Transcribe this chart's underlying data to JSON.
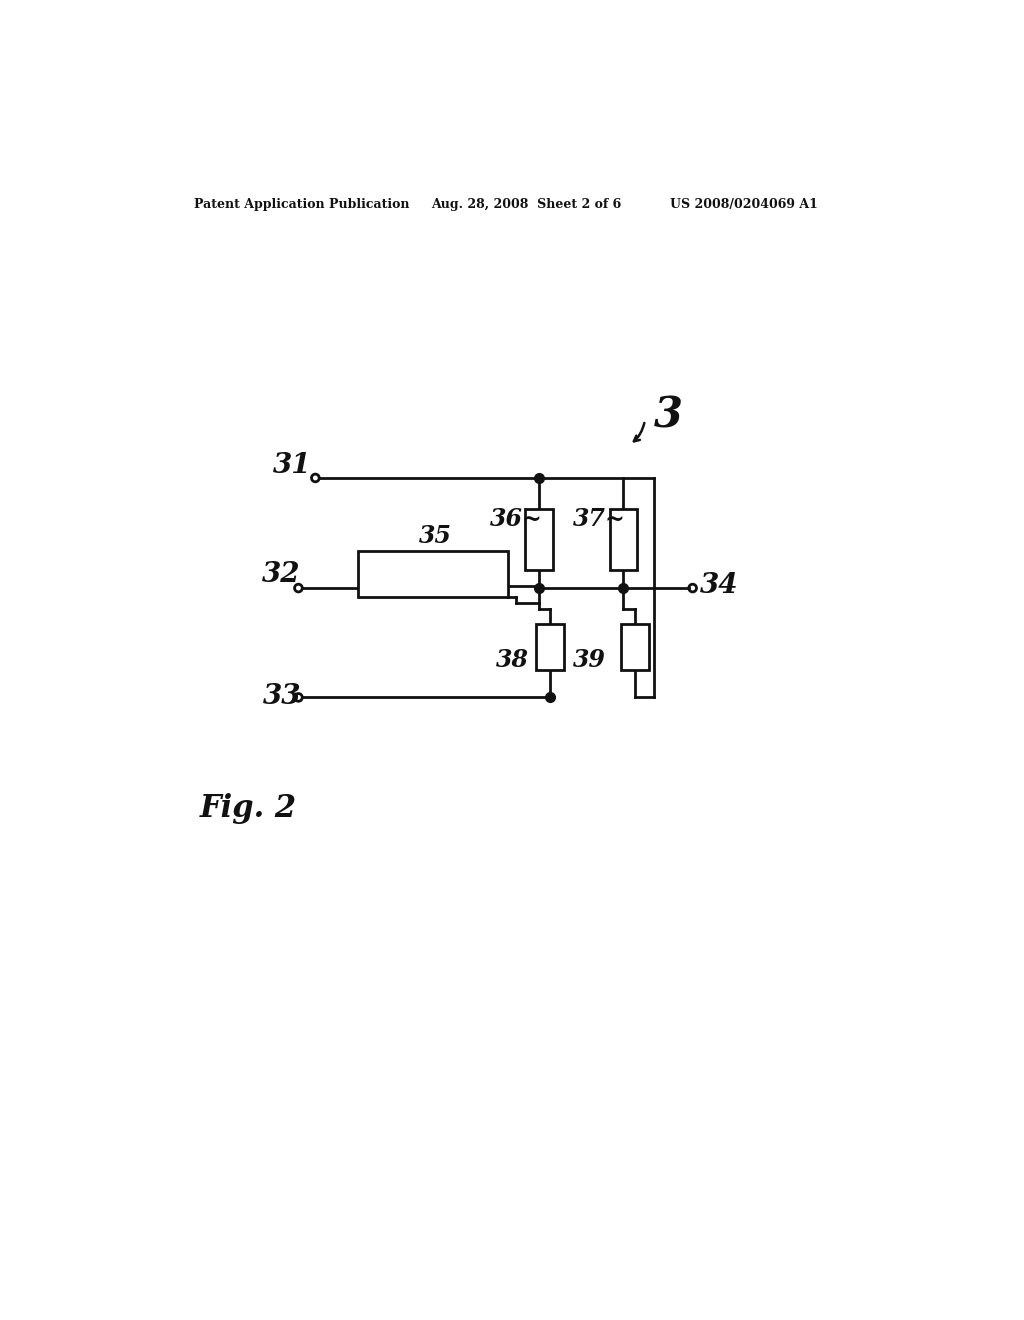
{
  "bg_color": "#ffffff",
  "header_left": "Patent Application Publication",
  "header_mid": "Aug. 28, 2008  Sheet 2 of 6",
  "header_right": "US 2008/0204069 A1",
  "fig_label": "Fig. 2",
  "line_color": "#111111",
  "lw": 2.0
}
